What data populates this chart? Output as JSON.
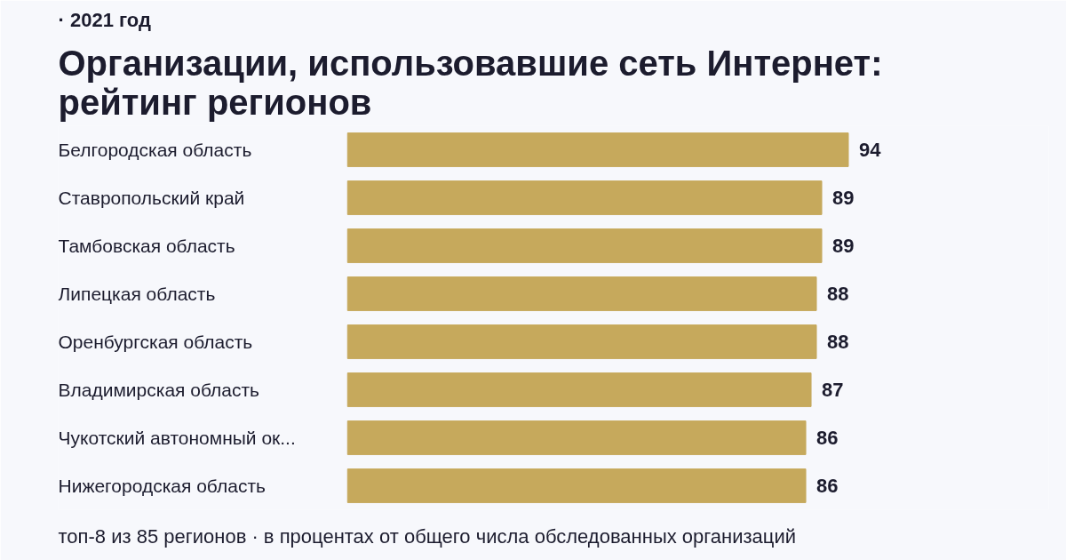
{
  "chart_data": {
    "type": "bar",
    "orientation": "horizontal",
    "subtitle": "· 2021 год",
    "title": "Организации, использовавшие сеть Интернет: рейтинг регионов",
    "categories": [
      "Белгородская область",
      "Ставропольский край",
      "Тамбовская область",
      "Липецкая область",
      "Оренбургская область",
      "Владимирская область",
      "Чукотский автономный ок...",
      "Нижегородская область"
    ],
    "values": [
      94,
      89,
      89,
      88,
      88,
      87,
      86,
      86
    ],
    "color": "#c6a95c",
    "data_labels": true,
    "grid": false,
    "annotations": [
      "топ-8 из 85 регионов · в процентах от общего числа обследованных организаций"
    ]
  }
}
